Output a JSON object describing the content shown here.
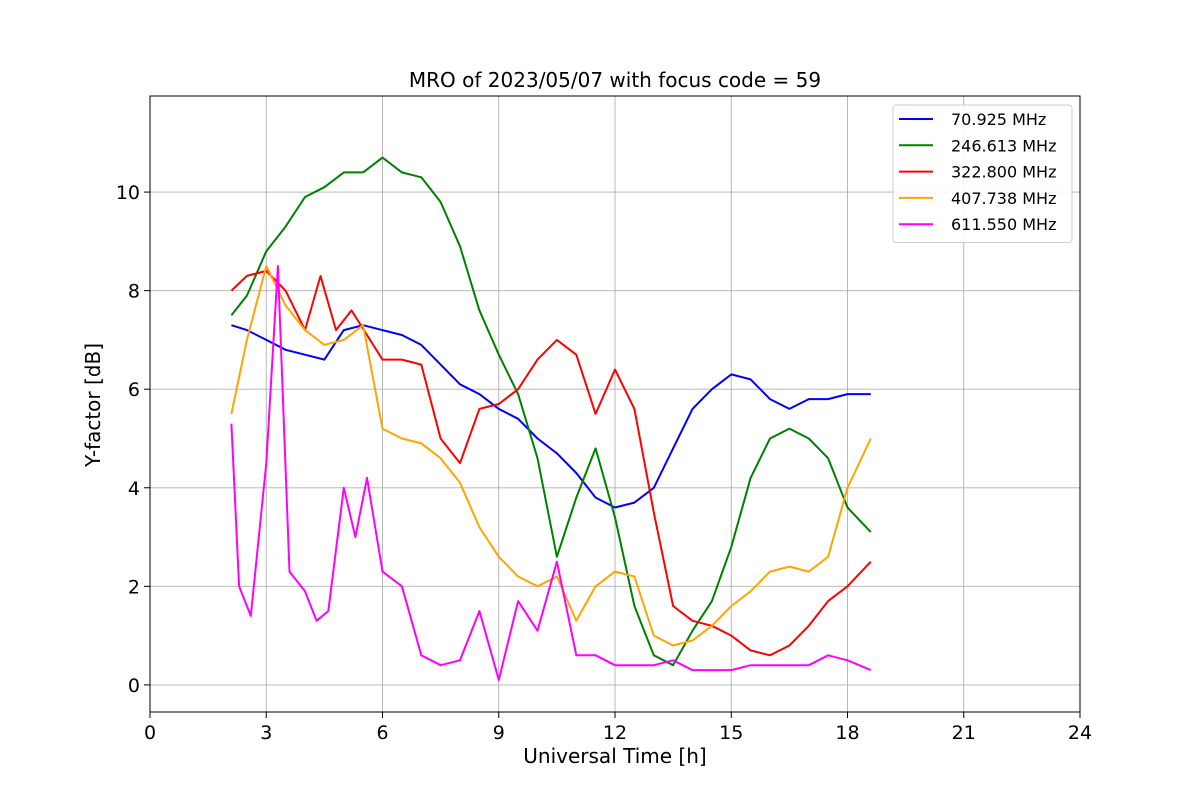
{
  "chart_data": {
    "type": "line",
    "title": "MRO of 2023/05/07 with focus code = 59",
    "xlabel": "Universal Time [h]",
    "ylabel": "Y-factor [dB]",
    "xlim": [
      0,
      24
    ],
    "ylim": [
      -0.55,
      11.95
    ],
    "xticks": [
      0,
      3,
      6,
      9,
      12,
      15,
      18,
      21,
      24
    ],
    "yticks": [
      0,
      2,
      4,
      6,
      8,
      10
    ],
    "grid": true,
    "legend_position": "top-right",
    "series": [
      {
        "name": " 70.925 MHz",
        "color": "#0000ff",
        "x": [
          2.1,
          2.5,
          3.0,
          3.5,
          4.0,
          4.5,
          5.0,
          5.5,
          6.0,
          6.5,
          7.0,
          7.5,
          8.0,
          8.5,
          9.0,
          9.5,
          10.0,
          10.5,
          11.0,
          11.5,
          12.0,
          12.5,
          13.0,
          13.5,
          14.0,
          14.5,
          15.0,
          15.5,
          16.0,
          16.5,
          17.0,
          17.5,
          18.0,
          18.6
        ],
        "values": [
          7.3,
          7.2,
          7.0,
          6.8,
          6.7,
          6.6,
          7.2,
          7.3,
          7.2,
          7.1,
          6.9,
          6.5,
          6.1,
          5.9,
          5.6,
          5.4,
          5.0,
          4.7,
          4.3,
          3.8,
          3.6,
          3.7,
          4.0,
          4.8,
          5.6,
          6.0,
          6.3,
          6.2,
          5.8,
          5.6,
          5.8,
          5.8,
          5.9,
          5.9
        ]
      },
      {
        "name": "246.613 MHz",
        "color": "#008000",
        "x": [
          2.1,
          2.5,
          3.0,
          3.5,
          4.0,
          4.5,
          5.0,
          5.5,
          6.0,
          6.5,
          7.0,
          7.5,
          8.0,
          8.5,
          9.0,
          9.5,
          10.0,
          10.5,
          11.0,
          11.5,
          12.0,
          12.5,
          13.0,
          13.5,
          14.0,
          14.5,
          15.0,
          15.5,
          16.0,
          16.5,
          17.0,
          17.5,
          18.0,
          18.6
        ],
        "values": [
          7.5,
          7.9,
          8.8,
          9.3,
          9.9,
          10.1,
          10.4,
          10.4,
          10.7,
          10.4,
          10.3,
          9.8,
          8.9,
          7.6,
          6.7,
          5.9,
          4.6,
          2.6,
          3.8,
          4.8,
          3.4,
          1.6,
          0.6,
          0.4,
          1.1,
          1.7,
          2.8,
          4.2,
          5.0,
          5.2,
          5.0,
          4.6,
          3.6,
          3.1
        ]
      },
      {
        "name": "322.800 MHz",
        "color": "#ff0000",
        "x": [
          2.1,
          2.5,
          3.0,
          3.5,
          4.0,
          4.4,
          4.8,
          5.2,
          5.6,
          6.0,
          6.5,
          7.0,
          7.5,
          8.0,
          8.5,
          9.0,
          9.5,
          10.0,
          10.5,
          11.0,
          11.5,
          12.0,
          12.5,
          13.0,
          13.5,
          14.0,
          14.5,
          15.0,
          15.5,
          16.0,
          16.5,
          17.0,
          17.5,
          18.0,
          18.6
        ],
        "values": [
          8.0,
          8.3,
          8.4,
          8.0,
          7.2,
          8.3,
          7.2,
          7.6,
          7.1,
          6.6,
          6.6,
          6.5,
          5.0,
          4.5,
          5.6,
          5.7,
          6.0,
          6.6,
          7.0,
          6.7,
          5.5,
          6.4,
          5.6,
          3.5,
          1.6,
          1.3,
          1.2,
          1.0,
          0.7,
          0.6,
          0.8,
          1.2,
          1.7,
          2.0,
          2.5
        ]
      },
      {
        "name": "407.738 MHz",
        "color": "#ffa500",
        "x": [
          2.1,
          2.5,
          3.0,
          3.5,
          4.0,
          4.5,
          5.0,
          5.5,
          6.0,
          6.5,
          7.0,
          7.5,
          8.0,
          8.5,
          9.0,
          9.5,
          10.0,
          10.5,
          11.0,
          11.5,
          12.0,
          12.5,
          13.0,
          13.5,
          14.0,
          14.5,
          15.0,
          15.5,
          16.0,
          16.5,
          17.0,
          17.5,
          18.0,
          18.6
        ],
        "values": [
          5.5,
          7.0,
          8.5,
          7.7,
          7.2,
          6.9,
          7.0,
          7.3,
          5.2,
          5.0,
          4.9,
          4.6,
          4.1,
          3.2,
          2.6,
          2.2,
          2.0,
          2.2,
          1.3,
          2.0,
          2.3,
          2.2,
          1.0,
          0.8,
          0.9,
          1.2,
          1.6,
          1.9,
          2.3,
          2.4,
          2.3,
          2.6,
          4.0,
          5.0
        ]
      },
      {
        "name": "611.550 MHz",
        "color": "#ff00ff",
        "x": [
          2.1,
          2.3,
          2.6,
          3.0,
          3.3,
          3.6,
          4.0,
          4.3,
          4.6,
          5.0,
          5.3,
          5.6,
          6.0,
          6.5,
          7.0,
          7.5,
          8.0,
          8.5,
          9.0,
          9.5,
          10.0,
          10.5,
          11.0,
          11.5,
          12.0,
          12.5,
          13.0,
          13.5,
          14.0,
          14.5,
          15.0,
          15.5,
          16.0,
          16.5,
          17.0,
          17.5,
          18.0,
          18.6
        ],
        "values": [
          5.3,
          2.0,
          1.4,
          4.5,
          8.5,
          2.3,
          1.9,
          1.3,
          1.5,
          4.0,
          3.0,
          4.2,
          2.3,
          2.0,
          0.6,
          0.4,
          0.5,
          1.5,
          0.1,
          1.7,
          1.1,
          2.5,
          0.6,
          0.6,
          0.4,
          0.4,
          0.4,
          0.5,
          0.3,
          0.3,
          0.3,
          0.4,
          0.4,
          0.4,
          0.4,
          0.6,
          0.5,
          0.3
        ]
      }
    ]
  }
}
